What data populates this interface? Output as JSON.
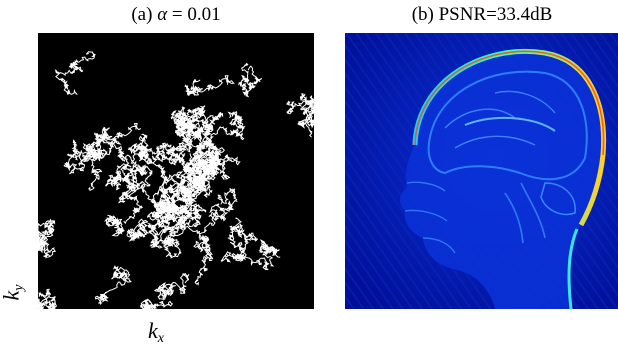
{
  "figure": {
    "panel_a": {
      "caption_prefix": "(a)",
      "caption_symbol": "α",
      "caption_equals": " = ",
      "caption_value": "0.01",
      "x_axis_label": "k",
      "x_axis_subscript": "x",
      "y_axis_label": "k",
      "y_axis_subscript": "y",
      "background_color": "#000000",
      "trajectory_color": "#ffffff"
    },
    "panel_b": {
      "caption": "(b) PSNR=33.4dB",
      "colormap": "jet",
      "background_color": "#0010a0"
    }
  }
}
